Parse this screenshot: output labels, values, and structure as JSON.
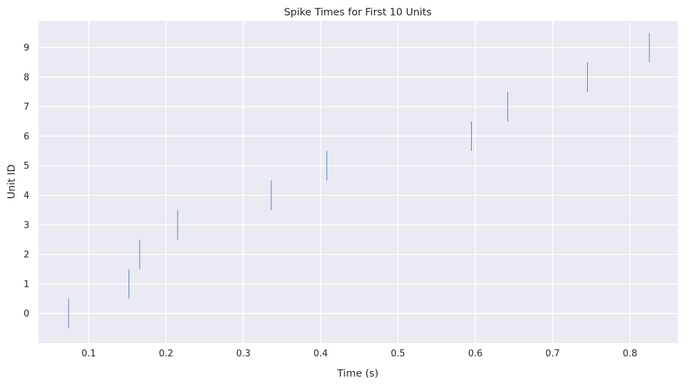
{
  "chart_data": {
    "type": "eventplot",
    "title": "Spike Times for First 10 Units",
    "xlabel": "Time (s)",
    "ylabel": "Unit ID",
    "xlim": [
      0.035,
      0.862
    ],
    "ylim": [
      -0.5,
      9.5
    ],
    "x_ticks": [
      0.1,
      0.2,
      0.3,
      0.4,
      0.5,
      0.6,
      0.7,
      0.8
    ],
    "x_tick_labels": [
      "0.1",
      "0.2",
      "0.3",
      "0.4",
      "0.5",
      "0.6",
      "0.7",
      "0.8"
    ],
    "y_ticks": [
      0,
      1,
      2,
      3,
      4,
      5,
      6,
      7,
      8,
      9
    ],
    "y_tick_labels": [
      "0",
      "1",
      "2",
      "3",
      "4",
      "5",
      "6",
      "7",
      "8",
      "9"
    ],
    "grid": true,
    "background_color": "#eaeaf2",
    "grid_color": "#ffffff",
    "spike_color": "#4c72b0",
    "series": [
      {
        "unit": 0,
        "spikes": [
          0.074
        ]
      },
      {
        "unit": 1,
        "spikes": [
          0.152
        ]
      },
      {
        "unit": 2,
        "spikes": [
          0.166
        ]
      },
      {
        "unit": 3,
        "spikes": [
          0.215
        ]
      },
      {
        "unit": 4,
        "spikes": [
          0.336
        ]
      },
      {
        "unit": 5,
        "spikes": [
          0.408
        ]
      },
      {
        "unit": 6,
        "spikes": [
          0.595
        ]
      },
      {
        "unit": 7,
        "spikes": [
          0.642
        ]
      },
      {
        "unit": 8,
        "spikes": [
          0.745
        ]
      },
      {
        "unit": 9,
        "spikes": [
          0.825
        ]
      }
    ]
  }
}
